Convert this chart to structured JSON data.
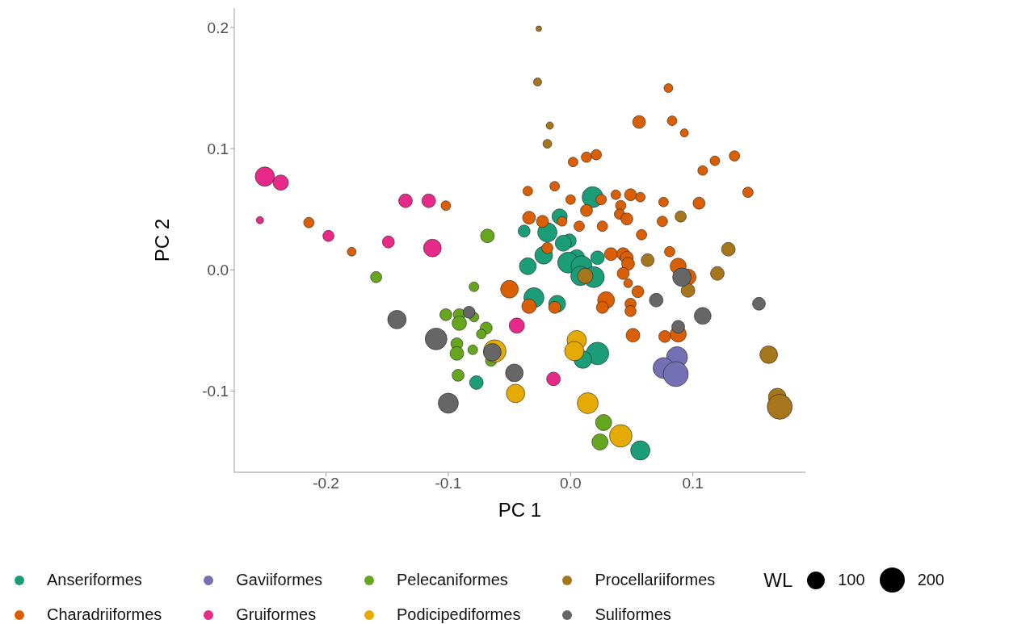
{
  "chart_data": {
    "type": "bubble",
    "xlabel": "PC 1",
    "ylabel": "PC 2",
    "legend_title": "WL",
    "size_legend": [
      100,
      200
    ],
    "legend": "bottom",
    "grid": false,
    "xlim": [
      -0.275,
      0.192
    ],
    "ylim": [
      -0.167,
      0.216
    ],
    "xticks": [
      -0.2,
      -0.1,
      {
        "value": 0,
        "label": "0.0"
      },
      0.1
    ],
    "yticks": [
      -0.1,
      {
        "value": 0,
        "label": "0.0"
      },
      0.1,
      0.2
    ],
    "series": [
      {
        "name": "Anseriformes",
        "color": "#1b9e77",
        "x": [
          0.018,
          -0.009,
          -0.038,
          -0.019,
          -0.001,
          -0.006,
          -0.022,
          -0.035,
          0.005,
          -0.002,
          0.009,
          0.022,
          0.008,
          0.019,
          -0.03,
          -0.011,
          0.022,
          0.01,
          0.057,
          -0.077
        ],
        "values": [
          0.06,
          0.044,
          0.032,
          0.031,
          0.024,
          0.022,
          0.012,
          0.003,
          0.01,
          0.006,
          0.003,
          0.01,
          -0.005,
          -0.006,
          -0.023,
          -0.028,
          -0.069,
          -0.074,
          -0.149,
          -0.093
        ],
        "sizes": [
          140,
          75,
          46,
          119,
          60,
          83,
          100,
          91,
          83,
          140,
          140,
          60,
          119,
          140,
          129,
          91,
          162,
          100,
          119,
          60
        ]
      },
      {
        "name": "Charadriiformes",
        "color": "#d95f02",
        "x": [
          -0.214,
          -0.179,
          -0.102,
          0.08,
          0.056,
          0.083,
          0.093,
          0.002,
          0.013,
          0.021,
          0.108,
          0.118,
          0.134,
          -0.013,
          -0.035,
          0.145,
          0.0,
          0.037,
          0.049,
          0.057,
          0.076,
          0.105,
          0.025,
          0.013,
          0.041,
          0.04,
          0.046,
          -0.034,
          -0.023,
          -0.007,
          0.007,
          0.026,
          0.075,
          0.058,
          -0.019,
          0.081,
          0.033,
          0.043,
          0.046,
          0.047,
          0.043,
          0.047,
          0.055,
          0.088,
          0.096,
          -0.05,
          -0.034,
          -0.013,
          0.029,
          0.026,
          0.049,
          0.049,
          0.051,
          0.077,
          0.088
        ],
        "values": [
          0.039,
          0.015,
          0.053,
          0.15,
          0.122,
          0.123,
          0.113,
          0.089,
          0.093,
          0.095,
          0.082,
          0.09,
          0.094,
          0.069,
          0.065,
          0.064,
          0.058,
          0.062,
          0.062,
          0.06,
          0.056,
          0.055,
          0.058,
          0.049,
          0.053,
          0.046,
          0.042,
          0.043,
          0.04,
          0.04,
          0.036,
          0.036,
          0.04,
          0.029,
          0.018,
          0.015,
          0.013,
          0.013,
          0.01,
          0.005,
          -0.003,
          -0.011,
          -0.018,
          0.003,
          -0.006,
          -0.016,
          -0.03,
          -0.031,
          -0.025,
          -0.031,
          -0.028,
          -0.034,
          -0.054,
          -0.055,
          -0.053
        ],
        "sizes": [
          35,
          25,
          30,
          25,
          53,
          30,
          21,
          30,
          35,
          35,
          30,
          30,
          35,
          30,
          30,
          35,
          30,
          30,
          46,
          30,
          30,
          46,
          35,
          46,
          35,
          35,
          46,
          53,
          46,
          30,
          35,
          35,
          35,
          35,
          40,
          35,
          53,
          53,
          53,
          53,
          46,
          25,
          46,
          83,
          83,
          100,
          67,
          46,
          91,
          46,
          40,
          40,
          60,
          46,
          83
        ]
      },
      {
        "name": "Gaviiformes",
        "color": "#7570b3",
        "x": [
          0.087,
          0.076,
          0.086
        ],
        "values": [
          -0.072,
          -0.081,
          -0.086
        ],
        "sizes": [
          140,
          140,
          200
        ]
      },
      {
        "name": "Gruiformes",
        "color": "#e7298a",
        "x": [
          -0.25,
          -0.237,
          -0.254,
          -0.198,
          -0.135,
          -0.116,
          -0.149,
          -0.113,
          -0.044,
          -0.014
        ],
        "values": [
          0.077,
          0.072,
          0.041,
          0.028,
          0.057,
          0.057,
          0.023,
          0.018,
          -0.046,
          -0.09
        ],
        "sizes": [
          119,
          75,
          17,
          40,
          60,
          60,
          46,
          100,
          75,
          60
        ]
      },
      {
        "name": "Pelecaniformes",
        "color": "#66a61e",
        "x": [
          -0.068,
          -0.159,
          -0.079,
          -0.102,
          -0.091,
          -0.079,
          -0.091,
          -0.069,
          -0.073,
          -0.093,
          -0.093,
          -0.08,
          -0.065,
          -0.092,
          0.027,
          0.024
        ],
        "values": [
          0.028,
          -0.006,
          -0.014,
          -0.037,
          -0.037,
          -0.039,
          -0.044,
          -0.048,
          -0.053,
          -0.061,
          -0.069,
          -0.066,
          -0.075,
          -0.087,
          -0.126,
          -0.142
        ],
        "sizes": [
          60,
          40,
          30,
          46,
          46,
          30,
          67,
          46,
          30,
          46,
          60,
          30,
          40,
          46,
          83,
          83
        ]
      },
      {
        "name": "Podicipediformes",
        "color": "#e6ab02",
        "x": [
          0.005,
          0.003,
          0.014,
          0.041,
          -0.045,
          -0.062
        ],
        "values": [
          -0.058,
          -0.067,
          -0.11,
          -0.137,
          -0.102,
          -0.067
        ],
        "sizes": [
          119,
          119,
          140,
          162,
          109,
          162
        ]
      },
      {
        "name": "Procellariiformes",
        "color": "#a6761d",
        "x": [
          -0.026,
          -0.027,
          -0.017,
          -0.019,
          0.09,
          0.129,
          0.063,
          0.12,
          0.012,
          0.096,
          0.162,
          0.169,
          0.171
        ],
        "values": [
          0.199,
          0.155,
          0.119,
          0.104,
          0.044,
          0.017,
          0.008,
          -0.003,
          -0.005,
          -0.017,
          -0.07,
          -0.105,
          -0.113
        ],
        "sizes": [
          10,
          21,
          17,
          25,
          40,
          60,
          53,
          60,
          75,
          60,
          100,
          100,
          199
        ]
      },
      {
        "name": "Suliformes",
        "color": "#666666",
        "x": [
          -0.142,
          -0.11,
          -0.1,
          -0.083,
          -0.064,
          -0.046,
          0.088,
          0.108,
          0.091,
          0.07,
          0.154
        ],
        "values": [
          -0.041,
          -0.057,
          -0.11,
          -0.035,
          -0.068,
          -0.085,
          -0.047,
          -0.038,
          -0.006,
          -0.025,
          -0.028
        ],
        "sizes": [
          109,
          151,
          129,
          46,
          100,
          100,
          53,
          91,
          109,
          60,
          53
        ]
      }
    ]
  }
}
